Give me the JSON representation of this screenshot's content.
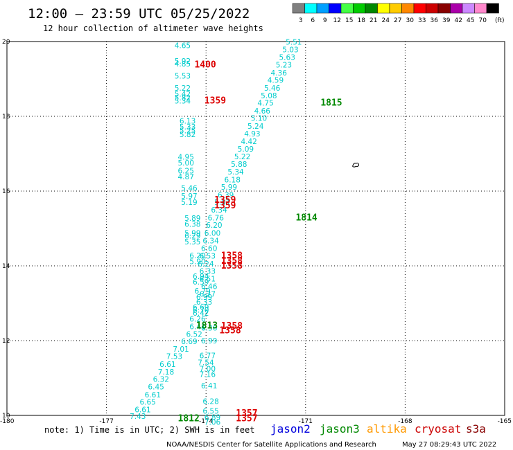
{
  "header": {
    "title": "12:00 – 23:59 UTC 05/25/2022",
    "subtitle": "12 hour collection of altimeter wave heights"
  },
  "legend": {
    "unit": "(ft)",
    "levels": [
      {
        "label": "3",
        "color": "#808080"
      },
      {
        "label": "6",
        "color": "#00ffff"
      },
      {
        "label": "9",
        "color": "#00a0ff"
      },
      {
        "label": "12",
        "color": "#0000ff"
      },
      {
        "label": "15",
        "color": "#44ff44"
      },
      {
        "label": "18",
        "color": "#00cc00"
      },
      {
        "label": "21",
        "color": "#008800"
      },
      {
        "label": "24",
        "color": "#ffff00"
      },
      {
        "label": "27",
        "color": "#ffcc00"
      },
      {
        "label": "30",
        "color": "#ff8800"
      },
      {
        "label": "33",
        "color": "#ff0000"
      },
      {
        "label": "36",
        "color": "#cc0000"
      },
      {
        "label": "39",
        "color": "#880000"
      },
      {
        "label": "42",
        "color": "#aa00aa"
      },
      {
        "label": "45",
        "color": "#cc88ff"
      },
      {
        "label": "70",
        "color": "#ff88cc"
      },
      {
        "label": "",
        "color": "#000000"
      }
    ]
  },
  "footer": {
    "note": "note: 1) Time is in UTC; 2) SWH is in feet",
    "credit": "NOAA/NESDIS Center for Satellite Applications and Research",
    "timestamp": "May 27 08:29:43 UTC 2022"
  },
  "satellites": [
    {
      "name": "jason2",
      "color": "#0000dd"
    },
    {
      "name": "jason3",
      "color": "#008800"
    },
    {
      "name": "altika",
      "color": "#ff9900"
    },
    {
      "name": "cryosat",
      "color": "#cc0000"
    },
    {
      "name": "s3a",
      "color": "#880000"
    }
  ],
  "chart_data": {
    "type": "scatter",
    "xlim": [
      -180,
      -165
    ],
    "ylim": [
      10,
      20
    ],
    "x_ticks": [
      "-180",
      "-177",
      "-174",
      "-171",
      "-168",
      "-165"
    ],
    "y_ticks": [
      "10",
      "12",
      "14",
      "16",
      "18",
      "20"
    ],
    "grid": true,
    "island_symbol": {
      "x": -169.5,
      "y": 16.7
    },
    "wave_color": "#00cccc",
    "wave_points": [
      {
        "x": -174.95,
        "y": 19.9,
        "v": "4.65"
      },
      {
        "x": -174.95,
        "y": 19.48,
        "v": "5.92"
      },
      {
        "x": -174.95,
        "y": 19.41,
        "v": "4.85"
      },
      {
        "x": -174.95,
        "y": 19.08,
        "v": "5.53"
      },
      {
        "x": -174.95,
        "y": 18.76,
        "v": "5.22"
      },
      {
        "x": -174.95,
        "y": 18.6,
        "v": "5.42"
      },
      {
        "x": -174.95,
        "y": 18.5,
        "v": "5.82"
      },
      {
        "x": -174.95,
        "y": 18.42,
        "v": "5.34"
      },
      {
        "x": -174.8,
        "y": 17.88,
        "v": "6.13"
      },
      {
        "x": -174.8,
        "y": 17.72,
        "v": "5.33"
      },
      {
        "x": -174.8,
        "y": 17.62,
        "v": "5.25"
      },
      {
        "x": -174.8,
        "y": 17.52,
        "v": "5.82"
      },
      {
        "x": -174.85,
        "y": 16.92,
        "v": "4.95"
      },
      {
        "x": -174.85,
        "y": 16.76,
        "v": "5.00"
      },
      {
        "x": -174.85,
        "y": 16.55,
        "v": "6.25"
      },
      {
        "x": -174.85,
        "y": 16.39,
        "v": "4.87"
      },
      {
        "x": -174.75,
        "y": 16.08,
        "v": "5.46"
      },
      {
        "x": -174.75,
        "y": 15.87,
        "v": "5.97"
      },
      {
        "x": -174.75,
        "y": 15.7,
        "v": "5.19"
      },
      {
        "x": -174.65,
        "y": 15.28,
        "v": "5.89"
      },
      {
        "x": -174.65,
        "y": 15.12,
        "v": "6.38"
      },
      {
        "x": -174.65,
        "y": 14.88,
        "v": "5.99"
      },
      {
        "x": -174.65,
        "y": 14.81,
        "v": "6.29"
      },
      {
        "x": -174.65,
        "y": 14.65,
        "v": "5.35"
      },
      {
        "x": -174.5,
        "y": 14.28,
        "v": "6.20"
      },
      {
        "x": -174.5,
        "y": 14.12,
        "v": "5.90"
      },
      {
        "x": -174.4,
        "y": 13.72,
        "v": "6.94"
      },
      {
        "x": -174.4,
        "y": 13.57,
        "v": "6.59"
      },
      {
        "x": -174.35,
        "y": 13.33,
        "v": "6.79"
      },
      {
        "x": -174.3,
        "y": 13.17,
        "v": "6.99"
      },
      {
        "x": -174.4,
        "y": 12.9,
        "v": "6.69"
      },
      {
        "x": -174.4,
        "y": 12.82,
        "v": "6.70"
      },
      {
        "x": -174.4,
        "y": 12.74,
        "v": "6.42"
      },
      {
        "x": -174.5,
        "y": 12.58,
        "v": "6.26"
      },
      {
        "x": -174.5,
        "y": 12.38,
        "v": "6.41"
      },
      {
        "x": -174.6,
        "y": 12.18,
        "v": "6.52"
      },
      {
        "x": -174.75,
        "y": 11.98,
        "v": "6.69"
      },
      {
        "x": -175.0,
        "y": 11.78,
        "v": "7.01"
      },
      {
        "x": -175.2,
        "y": 11.58,
        "v": "7.53"
      },
      {
        "x": -175.4,
        "y": 11.37,
        "v": "6.61"
      },
      {
        "x": -175.45,
        "y": 11.17,
        "v": "7.18"
      },
      {
        "x": -175.6,
        "y": 10.97,
        "v": "6.32"
      },
      {
        "x": -175.75,
        "y": 10.77,
        "v": "6.45"
      },
      {
        "x": -175.85,
        "y": 10.56,
        "v": "6.61"
      },
      {
        "x": -176.0,
        "y": 10.36,
        "v": "6.65"
      },
      {
        "x": -176.15,
        "y": 10.16,
        "v": "6.61"
      },
      {
        "x": -176.3,
        "y": 9.98,
        "v": "7.43"
      },
      {
        "x": -171.6,
        "y": 19.99,
        "v": "5.51"
      },
      {
        "x": -171.7,
        "y": 19.79,
        "v": "5.03"
      },
      {
        "x": -171.8,
        "y": 19.58,
        "v": "5.63"
      },
      {
        "x": -171.9,
        "y": 19.38,
        "v": "5.23"
      },
      {
        "x": -172.05,
        "y": 19.17,
        "v": "4.36"
      },
      {
        "x": -172.15,
        "y": 18.97,
        "v": "4.59"
      },
      {
        "x": -172.25,
        "y": 18.76,
        "v": "5.46"
      },
      {
        "x": -172.35,
        "y": 18.56,
        "v": "5.08"
      },
      {
        "x": -172.45,
        "y": 18.36,
        "v": "4.75"
      },
      {
        "x": -172.55,
        "y": 18.15,
        "v": "4.66"
      },
      {
        "x": -172.65,
        "y": 17.95,
        "v": "5.10"
      },
      {
        "x": -172.75,
        "y": 17.74,
        "v": "5.24"
      },
      {
        "x": -172.85,
        "y": 17.54,
        "v": "4.93"
      },
      {
        "x": -172.95,
        "y": 17.33,
        "v": "4.42"
      },
      {
        "x": -173.05,
        "y": 17.13,
        "v": "5.09"
      },
      {
        "x": -173.15,
        "y": 16.93,
        "v": "5.22"
      },
      {
        "x": -173.25,
        "y": 16.72,
        "v": "5.88"
      },
      {
        "x": -173.35,
        "y": 16.52,
        "v": "5.34"
      },
      {
        "x": -173.45,
        "y": 16.31,
        "v": "6.18"
      },
      {
        "x": -173.55,
        "y": 16.11,
        "v": "5.99"
      },
      {
        "x": -173.65,
        "y": 15.9,
        "v": "6.39"
      },
      {
        "x": -173.75,
        "y": 15.7,
        "v": "5.81"
      },
      {
        "x": -173.85,
        "y": 15.5,
        "v": "6.34"
      },
      {
        "x": -173.95,
        "y": 15.29,
        "v": "6.76"
      },
      {
        "x": -174.0,
        "y": 15.09,
        "v": "6.20"
      },
      {
        "x": -174.05,
        "y": 14.88,
        "v": "6.00"
      },
      {
        "x": -174.1,
        "y": 14.68,
        "v": "6.34"
      },
      {
        "x": -174.15,
        "y": 14.47,
        "v": "6.60"
      },
      {
        "x": -174.2,
        "y": 14.27,
        "v": "6.53"
      },
      {
        "x": -174.25,
        "y": 14.06,
        "v": "6.24"
      },
      {
        "x": -174.2,
        "y": 13.86,
        "v": "6.33"
      },
      {
        "x": -174.2,
        "y": 13.66,
        "v": "6.51"
      },
      {
        "x": -174.15,
        "y": 13.45,
        "v": "6.46"
      },
      {
        "x": -174.2,
        "y": 13.25,
        "v": "6.27"
      },
      {
        "x": -174.3,
        "y": 13.04,
        "v": "6.33"
      },
      {
        "x": -174.15,
        "y": 12.34,
        "v": "6.36"
      },
      {
        "x": -174.15,
        "y": 12.0,
        "v": "6.99"
      },
      {
        "x": -174.2,
        "y": 11.6,
        "v": "6.77"
      },
      {
        "x": -174.25,
        "y": 11.42,
        "v": "7.54"
      },
      {
        "x": -174.2,
        "y": 11.25,
        "v": "7.00"
      },
      {
        "x": -174.2,
        "y": 11.1,
        "v": "7.16"
      },
      {
        "x": -174.15,
        "y": 10.8,
        "v": "6.41"
      },
      {
        "x": -174.1,
        "y": 10.38,
        "v": "6.28"
      },
      {
        "x": -174.1,
        "y": 10.12,
        "v": "6.55"
      },
      {
        "x": -174.05,
        "y": 9.95,
        "v": "6.89"
      },
      {
        "x": -174.05,
        "y": 9.82,
        "v": "7.06"
      }
    ],
    "time_labels": [
      {
        "x": -174.35,
        "y": 19.38,
        "t": "1400",
        "color": "#dd0000"
      },
      {
        "x": -174.05,
        "y": 18.42,
        "t": "1359",
        "color": "#dd0000"
      },
      {
        "x": -173.75,
        "y": 15.76,
        "t": "1359",
        "color": "#dd0000"
      },
      {
        "x": -173.75,
        "y": 15.61,
        "t": "1359",
        "color": "#dd0000"
      },
      {
        "x": -173.55,
        "y": 14.27,
        "t": "1358",
        "color": "#dd0000"
      },
      {
        "x": -173.55,
        "y": 14.13,
        "t": "1358",
        "color": "#dd0000"
      },
      {
        "x": -173.55,
        "y": 14.0,
        "t": "1358",
        "color": "#dd0000"
      },
      {
        "x": -173.55,
        "y": 12.39,
        "t": "1358",
        "color": "#dd0000"
      },
      {
        "x": -173.6,
        "y": 12.27,
        "t": "1358",
        "color": "#dd0000"
      },
      {
        "x": -173.1,
        "y": 10.06,
        "t": "1357",
        "color": "#dd0000"
      },
      {
        "x": -173.1,
        "y": 9.92,
        "t": "1357",
        "color": "#dd0000"
      },
      {
        "x": -170.55,
        "y": 18.36,
        "t": "1815",
        "color": "#008800"
      },
      {
        "x": -171.3,
        "y": 15.29,
        "t": "1814",
        "color": "#008800"
      },
      {
        "x": -174.3,
        "y": 12.4,
        "t": "1813",
        "color": "#008800"
      },
      {
        "x": -174.85,
        "y": 9.92,
        "t": "1812",
        "color": "#008800"
      }
    ]
  }
}
